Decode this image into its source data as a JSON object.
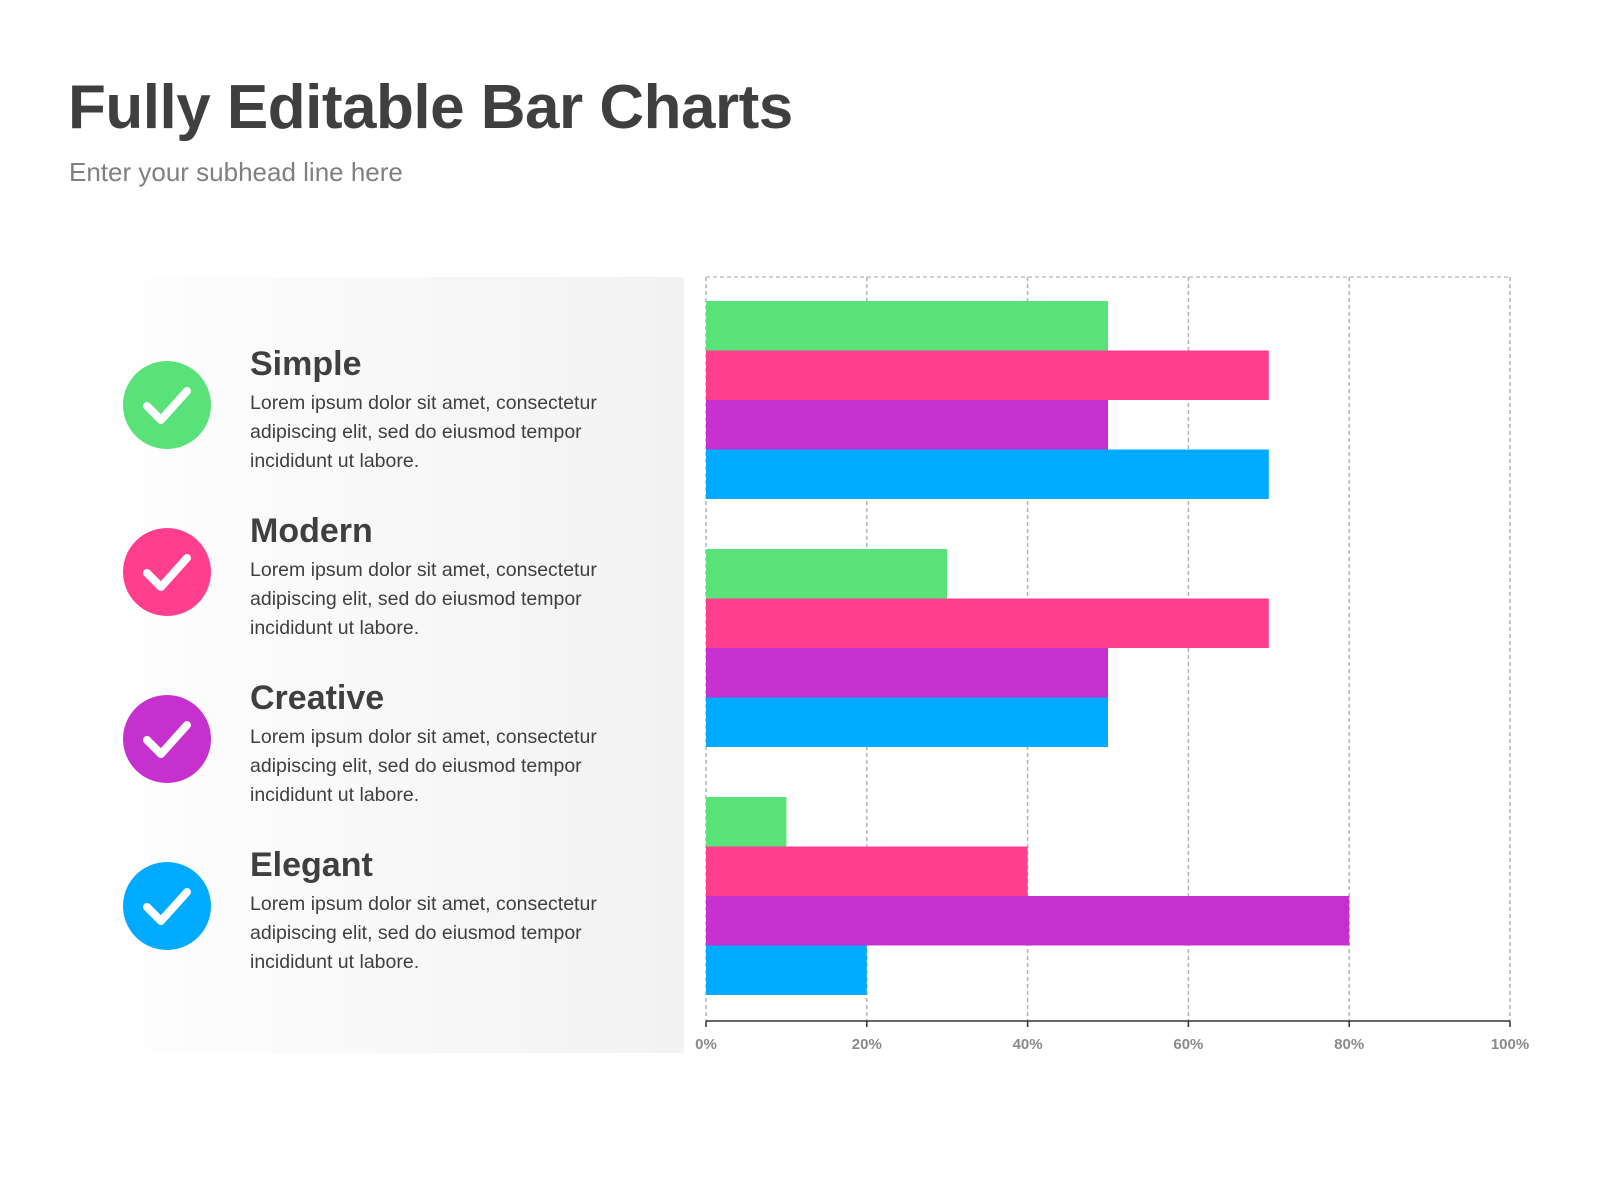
{
  "title": "Fully Editable Bar Charts",
  "subtitle": "Enter your subhead line here",
  "features": [
    {
      "title": "Simple",
      "desc": "Lorem ipsum dolor sit amet, consectetur adipiscing elit, sed do eiusmod tempor incididunt ut labore.",
      "color": "#5ae27a",
      "icon": "check-icon"
    },
    {
      "title": "Modern",
      "desc": "Lorem ipsum dolor sit amet, consectetur adipiscing elit, sed do eiusmod tempor incididunt ut labore.",
      "color": "#ff3e8e",
      "icon": "check-icon"
    },
    {
      "title": "Creative",
      "desc": "Lorem ipsum dolor sit amet, consectetur adipiscing elit, sed do eiusmod tempor incididunt ut labore.",
      "color": "#c630cf",
      "icon": "check-icon"
    },
    {
      "title": "Elegant",
      "desc": "Lorem ipsum dolor sit amet, consectetur adipiscing elit, sed do eiusmod tempor incididunt ut labore.",
      "color": "#00aaff",
      "icon": "check-icon"
    }
  ],
  "chart_data": {
    "type": "bar",
    "orientation": "horizontal",
    "groups": 3,
    "series": [
      {
        "color": "#5ae27a",
        "values": [
          50,
          30,
          10
        ]
      },
      {
        "color": "#ff3e8e",
        "values": [
          70,
          70,
          40
        ]
      },
      {
        "color": "#c630cf",
        "values": [
          50,
          50,
          80
        ]
      },
      {
        "color": "#00aaff",
        "values": [
          70,
          50,
          20
        ]
      }
    ],
    "xlim": [
      0,
      100
    ],
    "xticks": [
      "0%",
      "20%",
      "40%",
      "60%",
      "80%",
      "100%"
    ],
    "grid": true
  }
}
